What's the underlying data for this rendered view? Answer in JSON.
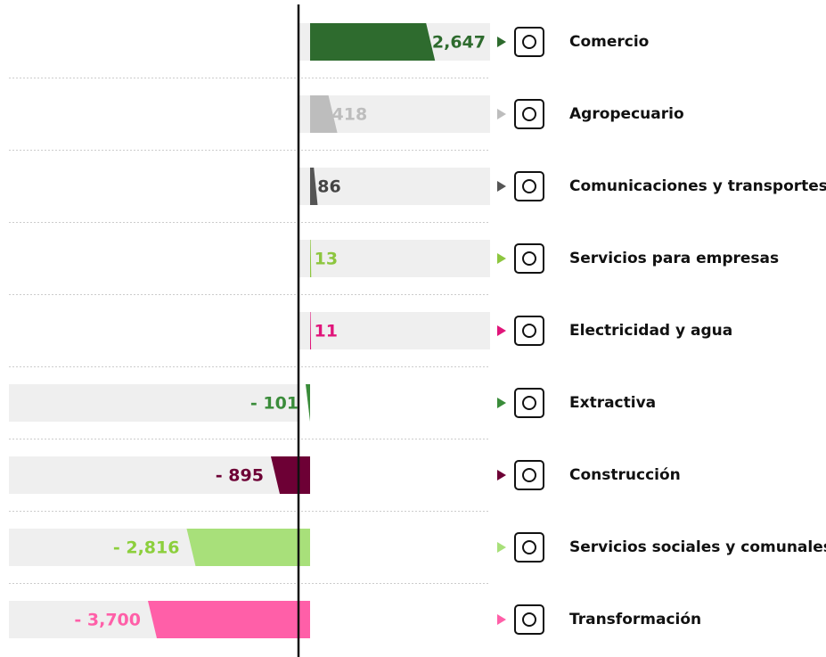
{
  "chart_data": {
    "type": "bar",
    "orientation": "horizontal",
    "categories": [
      "Comercio",
      "Agropecuario",
      "Comunicaciones y transportes",
      "Servicios para empresas",
      "Electricidad y agua",
      "Extractiva",
      "Construcción",
      "Servicios sociales y comunales",
      "Transformación"
    ],
    "values": [
      2647,
      418,
      86,
      13,
      11,
      -101,
      -895,
      -2816,
      -3700
    ],
    "value_labels": [
      "2,647",
      "418",
      "86",
      "13",
      "11",
      "- 101",
      "- 895",
      "- 2,816",
      "- 3,700"
    ],
    "colors": [
      "#2e6b2e",
      "#bdbdbd",
      "#555555",
      "#8dc63f",
      "#e0157a",
      "#3a8c3a",
      "#6d0035",
      "#a8e07a",
      "#ff5fa8"
    ],
    "label_colors": [
      "#2e6b2e",
      "#bdbdbd",
      "#444444",
      "#8dc63f",
      "#e0157a",
      "#3a8c3a",
      "#6d0035",
      "#8ccf3c",
      "#ff5fa8"
    ]
  }
}
